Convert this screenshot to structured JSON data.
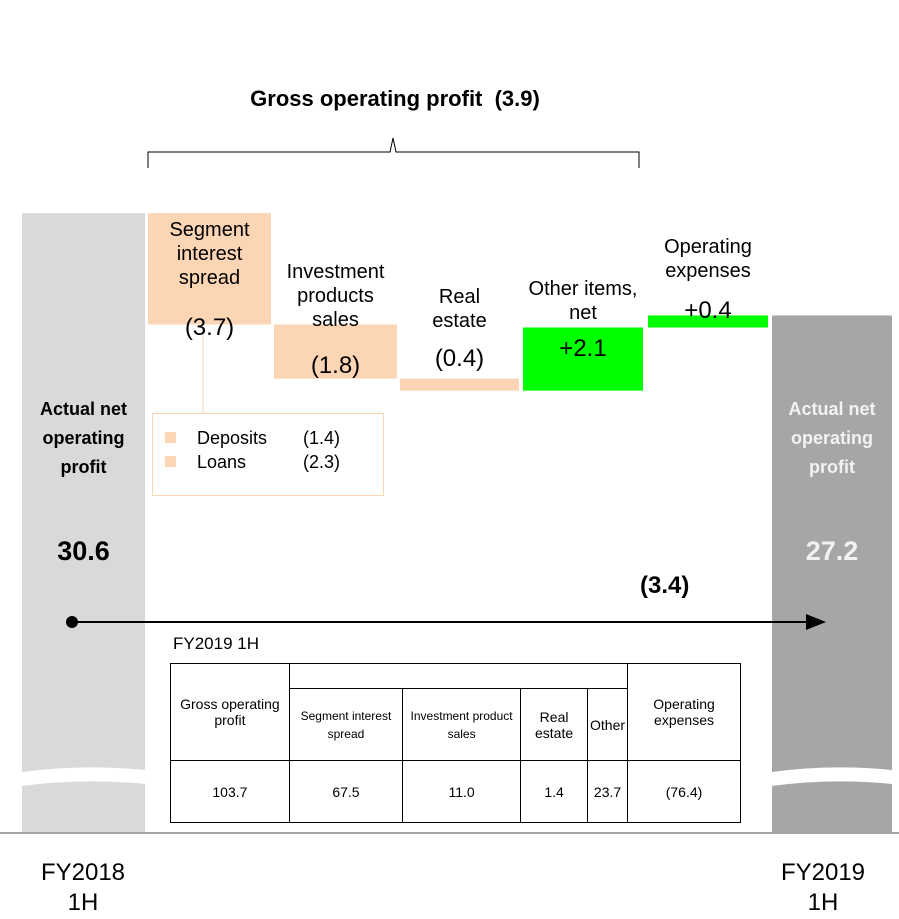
{
  "title": "Gross operating profit  (3.9)",
  "chart_data": {
    "type": "waterfall",
    "categories": [
      "Actual net operating profit",
      "Segment interest spread",
      "Investment products sales",
      "Real estate",
      "Other items, net",
      "Operating expenses",
      "Actual net operating profit"
    ],
    "values": [
      30.6,
      -3.7,
      -1.8,
      -0.4,
      2.1,
      0.4,
      27.2
    ],
    "value_labels": [
      "30.6",
      "(3.7)",
      "(1.8)",
      "(0.4)",
      "+2.1",
      "+0.4",
      "27.2"
    ],
    "colors": [
      "#d9d9d9",
      "#fcd5b4",
      "#fcd5b4",
      "#fcd5b4",
      "#00ff00",
      "#00ff00",
      "#a6a6a6"
    ],
    "ylim": [
      10,
      32
    ],
    "change_label": "(3.4)",
    "period_labels": [
      "FY2018 1H",
      "FY2019 1H"
    ]
  },
  "breakdown": [
    {
      "name": "Deposits",
      "value": "(1.4)"
    },
    {
      "name": "Loans",
      "value": "(2.3)"
    }
  ],
  "table": {
    "caption": "FY2019 1H",
    "header_top": [
      "Gross operating profit",
      "Operating expenses"
    ],
    "header_sub": [
      "Segment interest spread",
      "Investment product sales",
      "Real estate",
      "Other"
    ],
    "rows": [
      [
        "103.7",
        "67.5",
        "11.0",
        "1.4",
        "23.7",
        "(76.4)"
      ]
    ]
  }
}
